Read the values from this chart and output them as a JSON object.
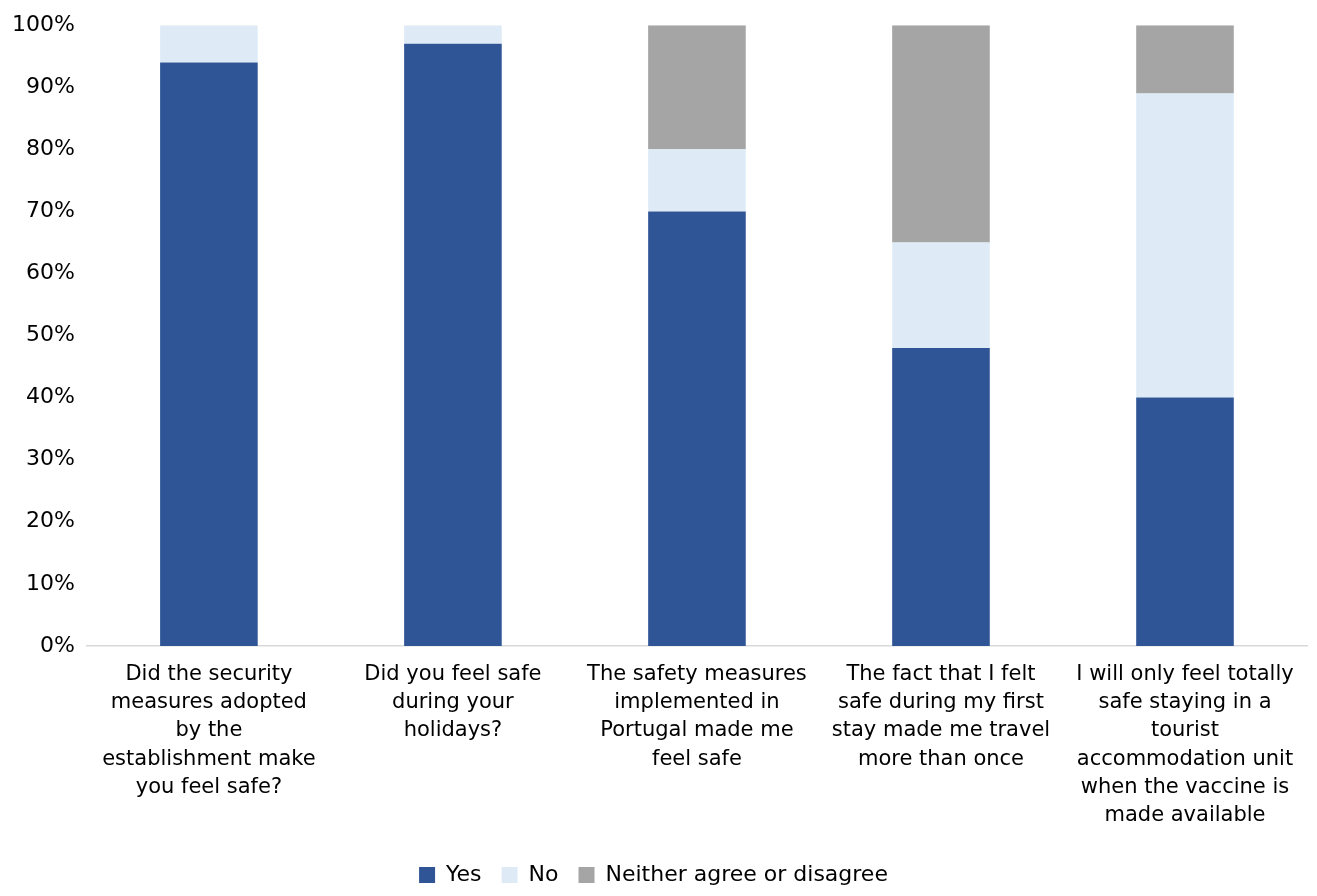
{
  "chart_data": {
    "type": "bar",
    "stacked": true,
    "categories": [
      "Did the security measures adopted by the establishment make you feel safe?",
      "Did you feel safe during your holidays?",
      "The safety measures implemented in Portugal made me feel safe",
      "The fact that I felt safe during my first stay made me travel more than once",
      "I will only feel totally safe staying in a tourist accommodation unit when the vaccine is made available"
    ],
    "series": [
      {
        "name": "Yes",
        "color": "#2f5597",
        "values": [
          94,
          97,
          70,
          48,
          40
        ]
      },
      {
        "name": "No",
        "color": "#deebf7",
        "values": [
          6,
          3,
          10,
          17,
          49
        ]
      },
      {
        "name": "Neither agree or disagree",
        "color": "#a5a5a5",
        "values": [
          0,
          0,
          20,
          35,
          11
        ]
      }
    ],
    "ylim": [
      0,
      100
    ],
    "yticks": [
      {
        "value": 0,
        "label": "0%"
      },
      {
        "value": 10,
        "label": "10%"
      },
      {
        "value": 20,
        "label": "20%"
      },
      {
        "value": 30,
        "label": "30%"
      },
      {
        "value": 40,
        "label": "40%"
      },
      {
        "value": 50,
        "label": "50%"
      },
      {
        "value": 60,
        "label": "60%"
      },
      {
        "value": 70,
        "label": "70%"
      },
      {
        "value": 80,
        "label": "80%"
      },
      {
        "value": 90,
        "label": "90%"
      },
      {
        "value": 100,
        "label": "100%"
      }
    ],
    "grid": false,
    "legend": "bottom"
  }
}
